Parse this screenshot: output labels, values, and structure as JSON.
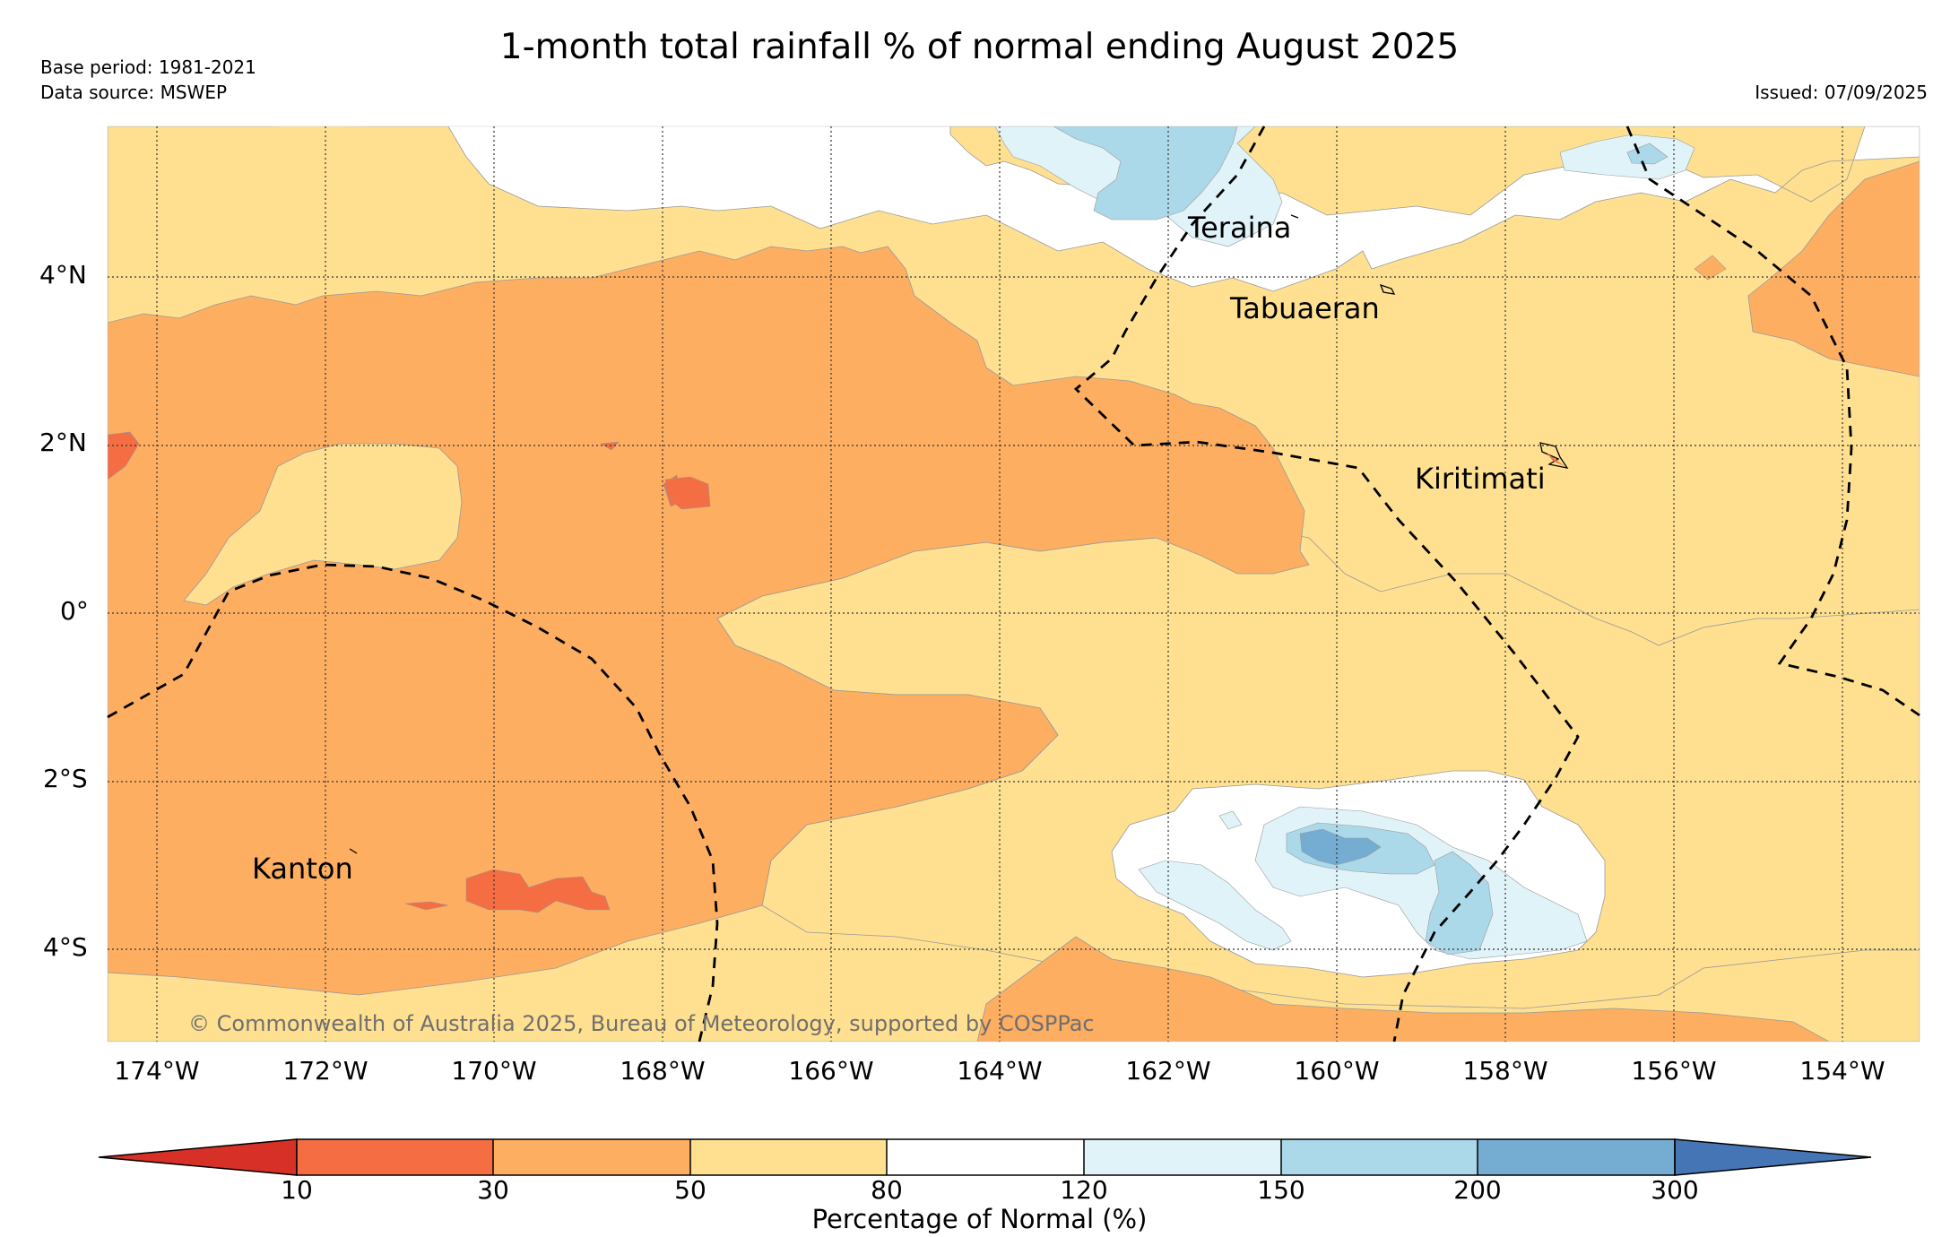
{
  "title": "1-month total rainfall % of normal ending August 2025",
  "base_period": "Base period: 1981-2021",
  "data_source": "Data source: MSWEP",
  "issued": "Issued: 07/09/2025",
  "copyright": "© Commonwealth of Australia 2025, Bureau of Meteorology, supported by COSPPac",
  "map": {
    "lon_labels": [
      "174°W",
      "172°W",
      "170°W",
      "168°W",
      "166°W",
      "164°W",
      "162°W",
      "160°W",
      "158°W",
      "156°W",
      "154°W"
    ],
    "lat_labels": [
      "4°N",
      "2°N",
      "0°",
      "2°S",
      "4°S"
    ],
    "places": [
      "Teraina",
      "Tabuaeran",
      "Kiritimati",
      "Kanton"
    ]
  },
  "colorbar": {
    "label": "Percentage of Normal (%)",
    "ticks": [
      "10",
      "30",
      "50",
      "80",
      "120",
      "150",
      "200",
      "300"
    ],
    "colors": {
      "below_10": "#d73027",
      "10-30": "#f46d43",
      "30-50": "#fdae61",
      "50-80": "#fee090",
      "80-120": "#ffffff",
      "120-150": "#e0f3f8",
      "150-200": "#abd9e9",
      "200-300": "#74add1",
      "above_300": "#4575b4"
    }
  }
}
